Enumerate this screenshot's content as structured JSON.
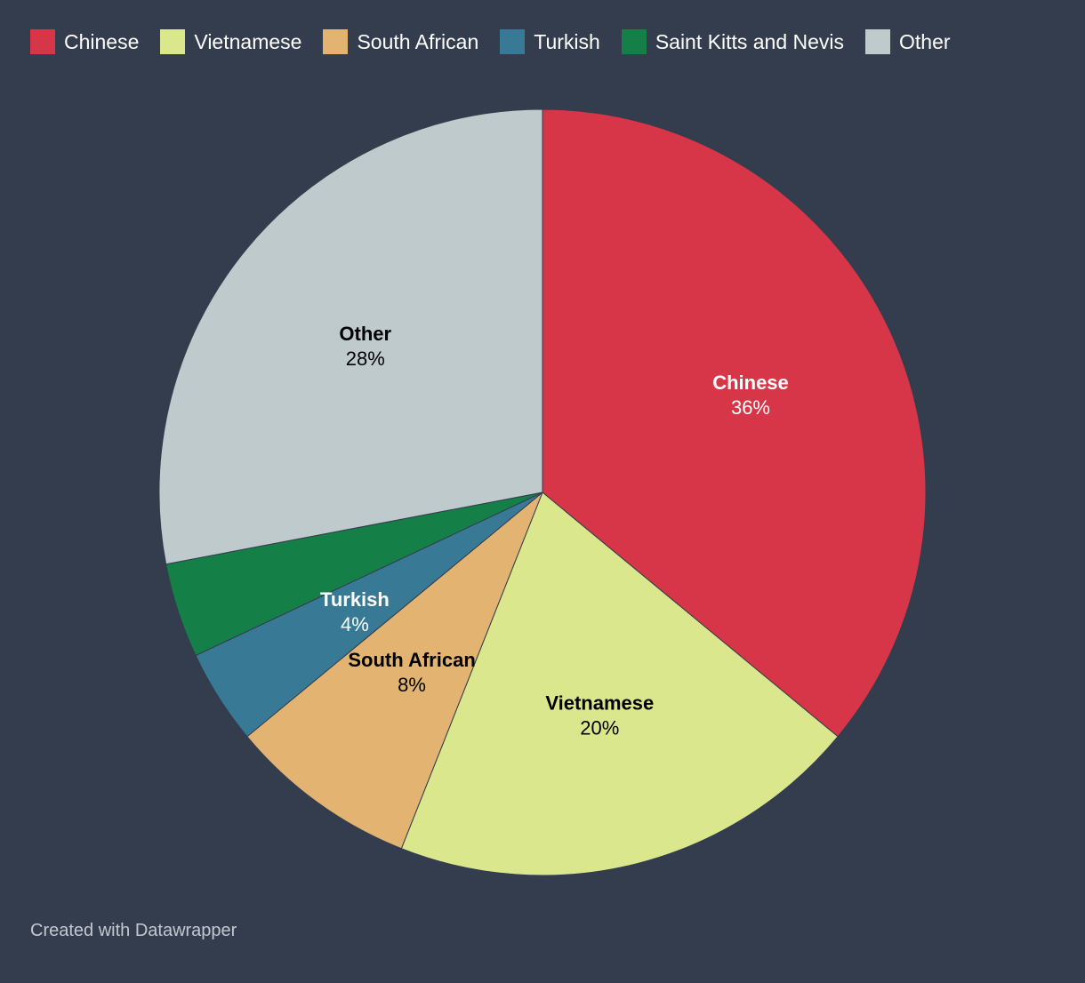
{
  "chart_data": {
    "type": "pie",
    "categories": [
      "Chinese",
      "Vietnamese",
      "South African",
      "Turkish",
      "Saint Kitts and Nevis",
      "Other"
    ],
    "values": [
      36,
      20,
      8,
      4,
      4,
      28
    ],
    "percent_labels": [
      "36%",
      "20%",
      "8%",
      "4%",
      "",
      "28%"
    ],
    "colors": [
      "#d73648",
      "#dbe78c",
      "#e3b372",
      "#387a95",
      "#147f46",
      "#bfcacd"
    ],
    "label_colors": [
      "#ffffff",
      "#000000",
      "#000000",
      "#ffffff",
      "#ffffff",
      "#000000"
    ],
    "show_label": [
      true,
      true,
      true,
      true,
      false,
      true
    ],
    "legend_position": "top-left"
  },
  "footer": {
    "credit": "Created with Datawrapper"
  }
}
